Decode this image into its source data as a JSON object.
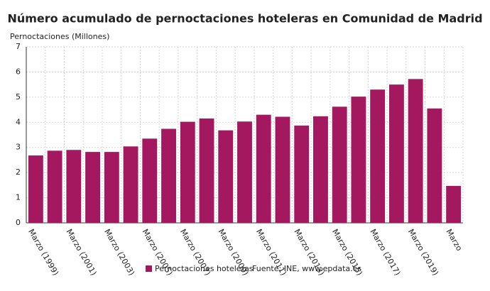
{
  "chart_data": {
    "type": "bar",
    "title": "Número acumulado de pernoctaciones hoteleras en Comunidad de Madrid",
    "y_label": "Pernoctaciones (Millones)",
    "source": "Fuente: INE, www.epdata.es",
    "categories": [
      "Marzo (1999)",
      null,
      "Marzo (2001)",
      null,
      "Marzo (2003)",
      null,
      "Marzo (2005)",
      null,
      "Marzo (2007)",
      null,
      "Marzo (2009)",
      null,
      "Marzo (2011)",
      null,
      "Marzo (2013)",
      null,
      "Marzo (2015)",
      null,
      "Marzo (2017)",
      null,
      "Marzo (2019)",
      null,
      "Marzo"
    ],
    "series": [
      {
        "name": "Pernoctaciones hoteleras",
        "color": "#a3185e",
        "values": [
          2.68,
          2.87,
          2.9,
          2.82,
          2.82,
          3.04,
          3.35,
          3.74,
          4.02,
          4.15,
          3.68,
          4.03,
          4.3,
          4.22,
          3.87,
          4.24,
          4.62,
          5.02,
          5.3,
          5.5,
          5.72,
          4.55,
          1.47
        ]
      }
    ],
    "ylim": [
      0,
      7
    ],
    "yticks": [
      0,
      1,
      2,
      3,
      4,
      5,
      6,
      7
    ],
    "grid": true
  }
}
